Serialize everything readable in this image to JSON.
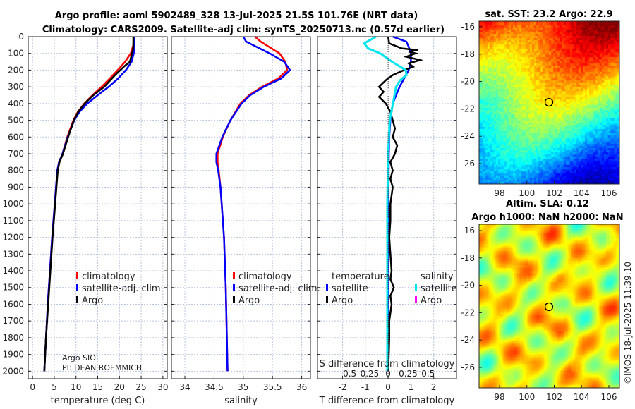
{
  "titles": {
    "line1": "Argo profile: aoml 5902489_328 13-Jul-2025 21.5S 101.76E (NRT data)",
    "line2": "Climatology: CARS2009. Satellite-adj clim: synTS_20250713.nc (0.57d earlier)",
    "sst": "sat. SST: 23.2 Argo: 22.9",
    "sla1": "Altim. SLA: 0.12",
    "sla2": "Argo h1000: NaN h2000: NaN",
    "copyright": "©IMOS 18-Jul-2025 11:39:10",
    "float_info1": "Argo SIO",
    "float_info2": "PI: DEAN ROEMMICH"
  },
  "colors": {
    "climatology": "#ff0000",
    "satellite": "#0000ff",
    "argo": "#000000",
    "sal_sat": "#00e5ee",
    "sal_argo": "#ff00ff"
  },
  "chart_data": [
    {
      "type": "line",
      "name": "temperature",
      "xlabel": "temperature (deg C)",
      "xlim": [
        -1,
        31
      ],
      "ylim": [
        2045,
        0
      ],
      "xticks": [
        0,
        5,
        10,
        15,
        20,
        25,
        30
      ],
      "yticks": [
        0,
        100,
        200,
        300,
        400,
        500,
        600,
        700,
        800,
        900,
        1000,
        1100,
        1200,
        1300,
        1400,
        1500,
        1600,
        1700,
        1800,
        1900,
        2000
      ],
      "legend": [
        "climatology",
        "satellite-adj. clim.",
        "Argo"
      ],
      "series": [
        {
          "name": "climatology",
          "color": "#ff0000",
          "depth": [
            0,
            50,
            100,
            150,
            200,
            250,
            300,
            350,
            400,
            450,
            500,
            600,
            700,
            750,
            800,
            900,
            1000,
            1200,
            1400,
            1600,
            1800,
            2000
          ],
          "values": [
            23.3,
            23.2,
            22.6,
            21.3,
            19.6,
            17.8,
            15.9,
            13.8,
            11.9,
            10.4,
            9.4,
            8.0,
            6.9,
            6.1,
            5.7,
            5.4,
            5.1,
            4.5,
            4.0,
            3.5,
            3.1,
            2.7
          ]
        },
        {
          "name": "satellite-adj. clim.",
          "color": "#0000ff",
          "depth": [
            0,
            50,
            100,
            150,
            200,
            250,
            300,
            350,
            400,
            450,
            500,
            600,
            700,
            750,
            800,
            900,
            1000,
            1200,
            1400,
            1600,
            1800,
            2000
          ],
          "values": [
            23.4,
            23.4,
            23.3,
            22.8,
            21.5,
            19.7,
            17.5,
            15.0,
            12.6,
            10.8,
            9.6,
            8.1,
            6.9,
            6.1,
            5.7,
            5.4,
            5.1,
            4.5,
            4.0,
            3.5,
            3.1,
            2.7
          ]
        },
        {
          "name": "Argo",
          "color": "#000000",
          "depth": [
            0,
            50,
            80,
            100,
            150,
            180,
            230,
            300,
            350,
            400,
            450,
            500,
            600,
            700,
            750,
            800,
            900,
            1000,
            1200,
            1400,
            1600,
            1800,
            2000
          ],
          "values": [
            23.2,
            23.2,
            23.1,
            22.9,
            22.4,
            21.0,
            19.0,
            16.5,
            14.0,
            12.0,
            10.5,
            9.5,
            8.2,
            7.0,
            6.2,
            5.8,
            5.5,
            5.2,
            4.6,
            4.1,
            3.6,
            3.1,
            2.7
          ]
        }
      ]
    },
    {
      "type": "line",
      "name": "salinity",
      "xlabel": "salinity",
      "xlim": [
        33.77,
        36.15
      ],
      "ylim": [
        2045,
        0
      ],
      "xticks": [
        34,
        34.5,
        35,
        35.5,
        36
      ],
      "legend": [
        "climatology",
        "satellite-adj. clim.",
        "Argo"
      ],
      "series": [
        {
          "name": "climatology",
          "color": "#ff0000",
          "depth": [
            0,
            30,
            100,
            150,
            200,
            250,
            300,
            350,
            400,
            500,
            600,
            700,
            750,
            800,
            900,
            1000,
            1200,
            1500,
            2000
          ],
          "values": [
            35.2,
            35.3,
            35.62,
            35.72,
            35.75,
            35.6,
            35.32,
            35.1,
            34.95,
            34.78,
            34.65,
            34.56,
            34.56,
            34.58,
            34.61,
            34.63,
            34.67,
            34.7,
            34.73
          ]
        },
        {
          "name": "satellite-adj. clim.",
          "color": "#0000ff",
          "depth": [
            0,
            30,
            100,
            150,
            200,
            250,
            300,
            350,
            400,
            500,
            600,
            700,
            750,
            800,
            900,
            1000,
            1200,
            1500,
            2000
          ],
          "values": [
            35.0,
            35.05,
            35.45,
            35.7,
            35.8,
            35.65,
            35.35,
            35.12,
            34.97,
            34.78,
            34.64,
            34.54,
            34.54,
            34.57,
            34.61,
            34.63,
            34.67,
            34.7,
            34.73
          ]
        }
      ]
    },
    {
      "type": "line",
      "name": "differences",
      "xlabel": "T difference from climatology",
      "x2label": "S difference from climatology",
      "xlim": [
        -3.1,
        3.0
      ],
      "s_scale": 0.285,
      "ylim": [
        2045,
        0
      ],
      "xticks": [
        -2,
        -1,
        0,
        1,
        2
      ],
      "x2ticks": [
        -0.5,
        -0.25,
        0,
        0.25,
        0.5
      ],
      "legend_t": {
        "title": "temperature",
        "items": [
          "satellite",
          "Argo"
        ]
      },
      "legend_s": {
        "title": "salinity",
        "items": [
          "satellite",
          "Argo"
        ]
      },
      "series": [
        {
          "name": "T satellite",
          "color": "#0000ff",
          "axis": "T",
          "depth": [
            0,
            30,
            60,
            100,
            150,
            200,
            250,
            300,
            350,
            400,
            500,
            600,
            700,
            900,
            1200,
            1600,
            2000
          ],
          "values": [
            0.2,
            0.8,
            0.9,
            1.0,
            1.0,
            0.9,
            0.7,
            0.5,
            0.35,
            0.2,
            0.1,
            0.05,
            0.03,
            0.02,
            0.02,
            0.01,
            0.0
          ]
        },
        {
          "name": "T Argo",
          "color": "#000000",
          "axis": "T",
          "depth": [
            0,
            40,
            70,
            80,
            90,
            100,
            120,
            140,
            160,
            180,
            200,
            230,
            260,
            300,
            330,
            360,
            400,
            450,
            500,
            550,
            600,
            650,
            700,
            750,
            800,
            850,
            900,
            1000,
            1100,
            1200,
            1300,
            1400,
            1450,
            1500,
            1550,
            1600,
            1700,
            1800,
            1900,
            2000
          ],
          "values": [
            0,
            0.05,
            0.6,
            1.3,
            0.9,
            1.2,
            0.8,
            1.4,
            0.9,
            1.1,
            0.7,
            0.2,
            -0.1,
            -0.4,
            -0.2,
            -0.4,
            -0.1,
            0.1,
            0.2,
            0.3,
            0.2,
            0.4,
            0.3,
            0.1,
            0.2,
            0.1,
            0.2,
            0.1,
            0.1,
            0.05,
            0.1,
            0.15,
            0.1,
            0.25,
            0.1,
            0.15,
            0.05,
            0.05,
            0.03,
            0.0
          ]
        },
        {
          "name": "S satellite",
          "color": "#00e5ee",
          "axis": "S",
          "depth": [
            0,
            40,
            70,
            100,
            150,
            200,
            230,
            260,
            300,
            400,
            500,
            700,
            1000,
            1500,
            2000
          ],
          "values": [
            -0.15,
            -0.3,
            -0.25,
            -0.1,
            0.05,
            0.22,
            0.23,
            0.15,
            0.1,
            0.06,
            0.02,
            0.0,
            -0.01,
            -0.01,
            -0.01
          ]
        }
      ]
    }
  ],
  "maps": {
    "sst": {
      "lat_ticks": [
        -16,
        -18,
        -20,
        -22,
        -24,
        -26
      ],
      "lon_ticks": [
        98,
        100,
        102,
        104,
        106
      ]
    },
    "sla": {
      "lat_ticks": [
        -16,
        -18,
        -20,
        -22,
        -24,
        -26
      ],
      "lon_ticks": [
        98,
        100,
        102,
        104,
        106
      ]
    }
  }
}
